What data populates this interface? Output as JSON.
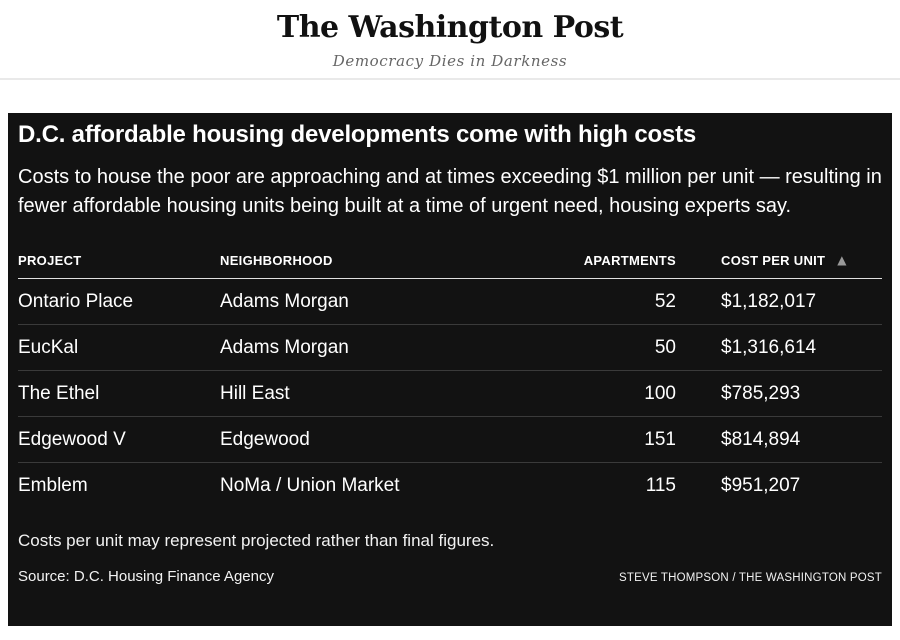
{
  "masthead": {
    "logo": "The Washington Post",
    "tagline": "Democracy Dies in Darkness"
  },
  "chart_data": {
    "type": "table",
    "title": "D.C. affordable housing developments come with high costs",
    "subtitle": "Costs to house the poor are approaching and at times exceeding $1 million per unit — resulting in fewer affordable housing units being built at a time of urgent need, housing experts say.",
    "columns": [
      "PROJECT",
      "NEIGHBORHOOD",
      "APARTMENTS",
      "COST PER UNIT"
    ],
    "rows": [
      [
        "Ontario Place",
        "Adams Morgan",
        "52",
        "$1,182,017"
      ],
      [
        "EucKal",
        "Adams Morgan",
        "50",
        "$1,316,614"
      ],
      [
        "The Ethel",
        "Hill East",
        "100",
        "$785,293"
      ],
      [
        "Edgewood V",
        "Edgewood",
        "151",
        "$814,894"
      ],
      [
        "Emblem",
        "NoMa / Union Market",
        "115",
        "$951,207"
      ]
    ],
    "apartments_values": [
      52,
      50,
      100,
      151,
      115
    ],
    "cost_per_unit_values": [
      1182017,
      1316614,
      785293,
      814894,
      951207
    ],
    "sort_indicator": {
      "column": "COST PER UNIT",
      "glyph": "▲"
    },
    "note": "Costs per unit may represent projected rather than final figures.",
    "source": "Source: D.C. Housing Finance Agency",
    "credit": "STEVE THOMPSON / THE WASHINGTON POST"
  },
  "colors": {
    "panel_background": "#121212",
    "text_on_panel": "#ffffff",
    "header_underline": "#e0e0e0",
    "row_divider": "#3a3a3a",
    "sort_arrow": "#999999",
    "tagline_gray": "#666666",
    "masthead_divider": "#e9e9e9"
  }
}
